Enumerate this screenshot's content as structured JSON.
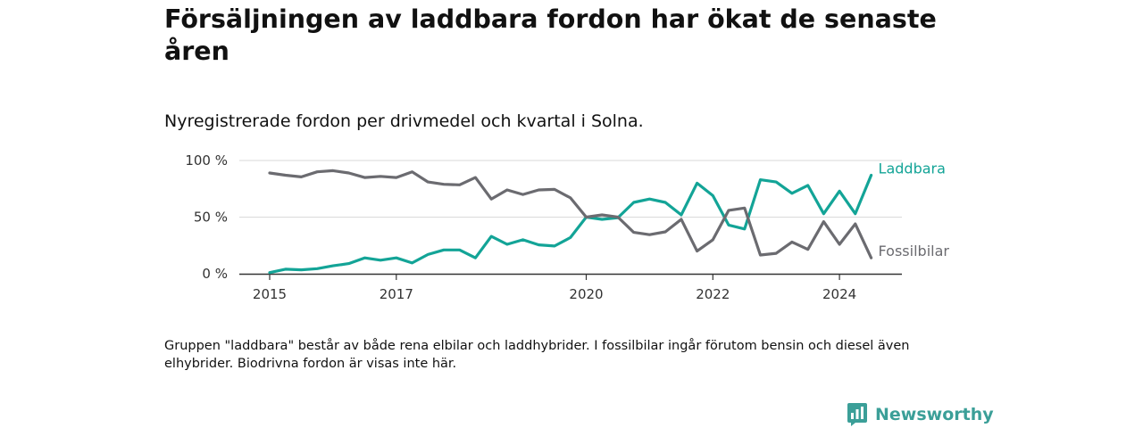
{
  "title": "Försäljningen av laddbara fordon har ökat de senaste åren",
  "subtitle": "Nyregistrerade fordon per drivmedel och kvartal i Solna.",
  "footnote": "Gruppen \"laddbara\" består av både rena elbilar och laddhybrider. I fossilbilar ingår förutom bensin och diesel även elhybrider. Biodrivna fordon är visas inte här.",
  "brand": "Newsworthy",
  "chart_data": {
    "type": "line",
    "title": "Försäljningen av laddbara fordon har ökat de senaste åren",
    "subtitle": "Nyregistrerade fordon per drivmedel och kvartal i Solna.",
    "xlabel": "",
    "ylabel": "",
    "ylim": [
      0,
      100
    ],
    "y_ticks": [
      0,
      50,
      100
    ],
    "y_tick_labels": [
      "0 %",
      "50 %",
      "100 %"
    ],
    "x_start": 2015,
    "x_step": 0.25,
    "x_ticks": [
      2015,
      2017,
      2020,
      2022,
      2024
    ],
    "x_tick_labels": [
      "2015",
      "2017",
      "2020",
      "2022",
      "2024"
    ],
    "grid": true,
    "series": [
      {
        "name": "Laddbara",
        "color": "#13a497",
        "values": [
          1,
          4,
          3.5,
          4.5,
          7,
          9,
          14,
          12,
          14,
          9.5,
          17,
          21,
          21,
          14,
          33,
          26,
          30,
          25.5,
          24.5,
          32,
          50,
          48,
          49.5,
          63,
          66,
          63,
          52,
          80,
          69,
          43,
          39.5,
          83,
          81,
          71,
          78,
          53,
          73,
          53,
          87
        ]
      },
      {
        "name": "Fossilbilar",
        "color": "#6b6b70",
        "values": [
          89,
          87,
          85.5,
          90,
          91,
          89,
          85,
          86,
          85,
          90,
          81,
          79,
          78.5,
          85,
          66,
          74,
          70,
          74,
          74.5,
          67,
          50,
          52,
          50,
          36.5,
          34.5,
          37,
          48,
          20,
          30,
          56,
          58,
          16.5,
          18,
          28,
          21.5,
          46,
          26,
          44,
          14
        ]
      }
    ]
  }
}
